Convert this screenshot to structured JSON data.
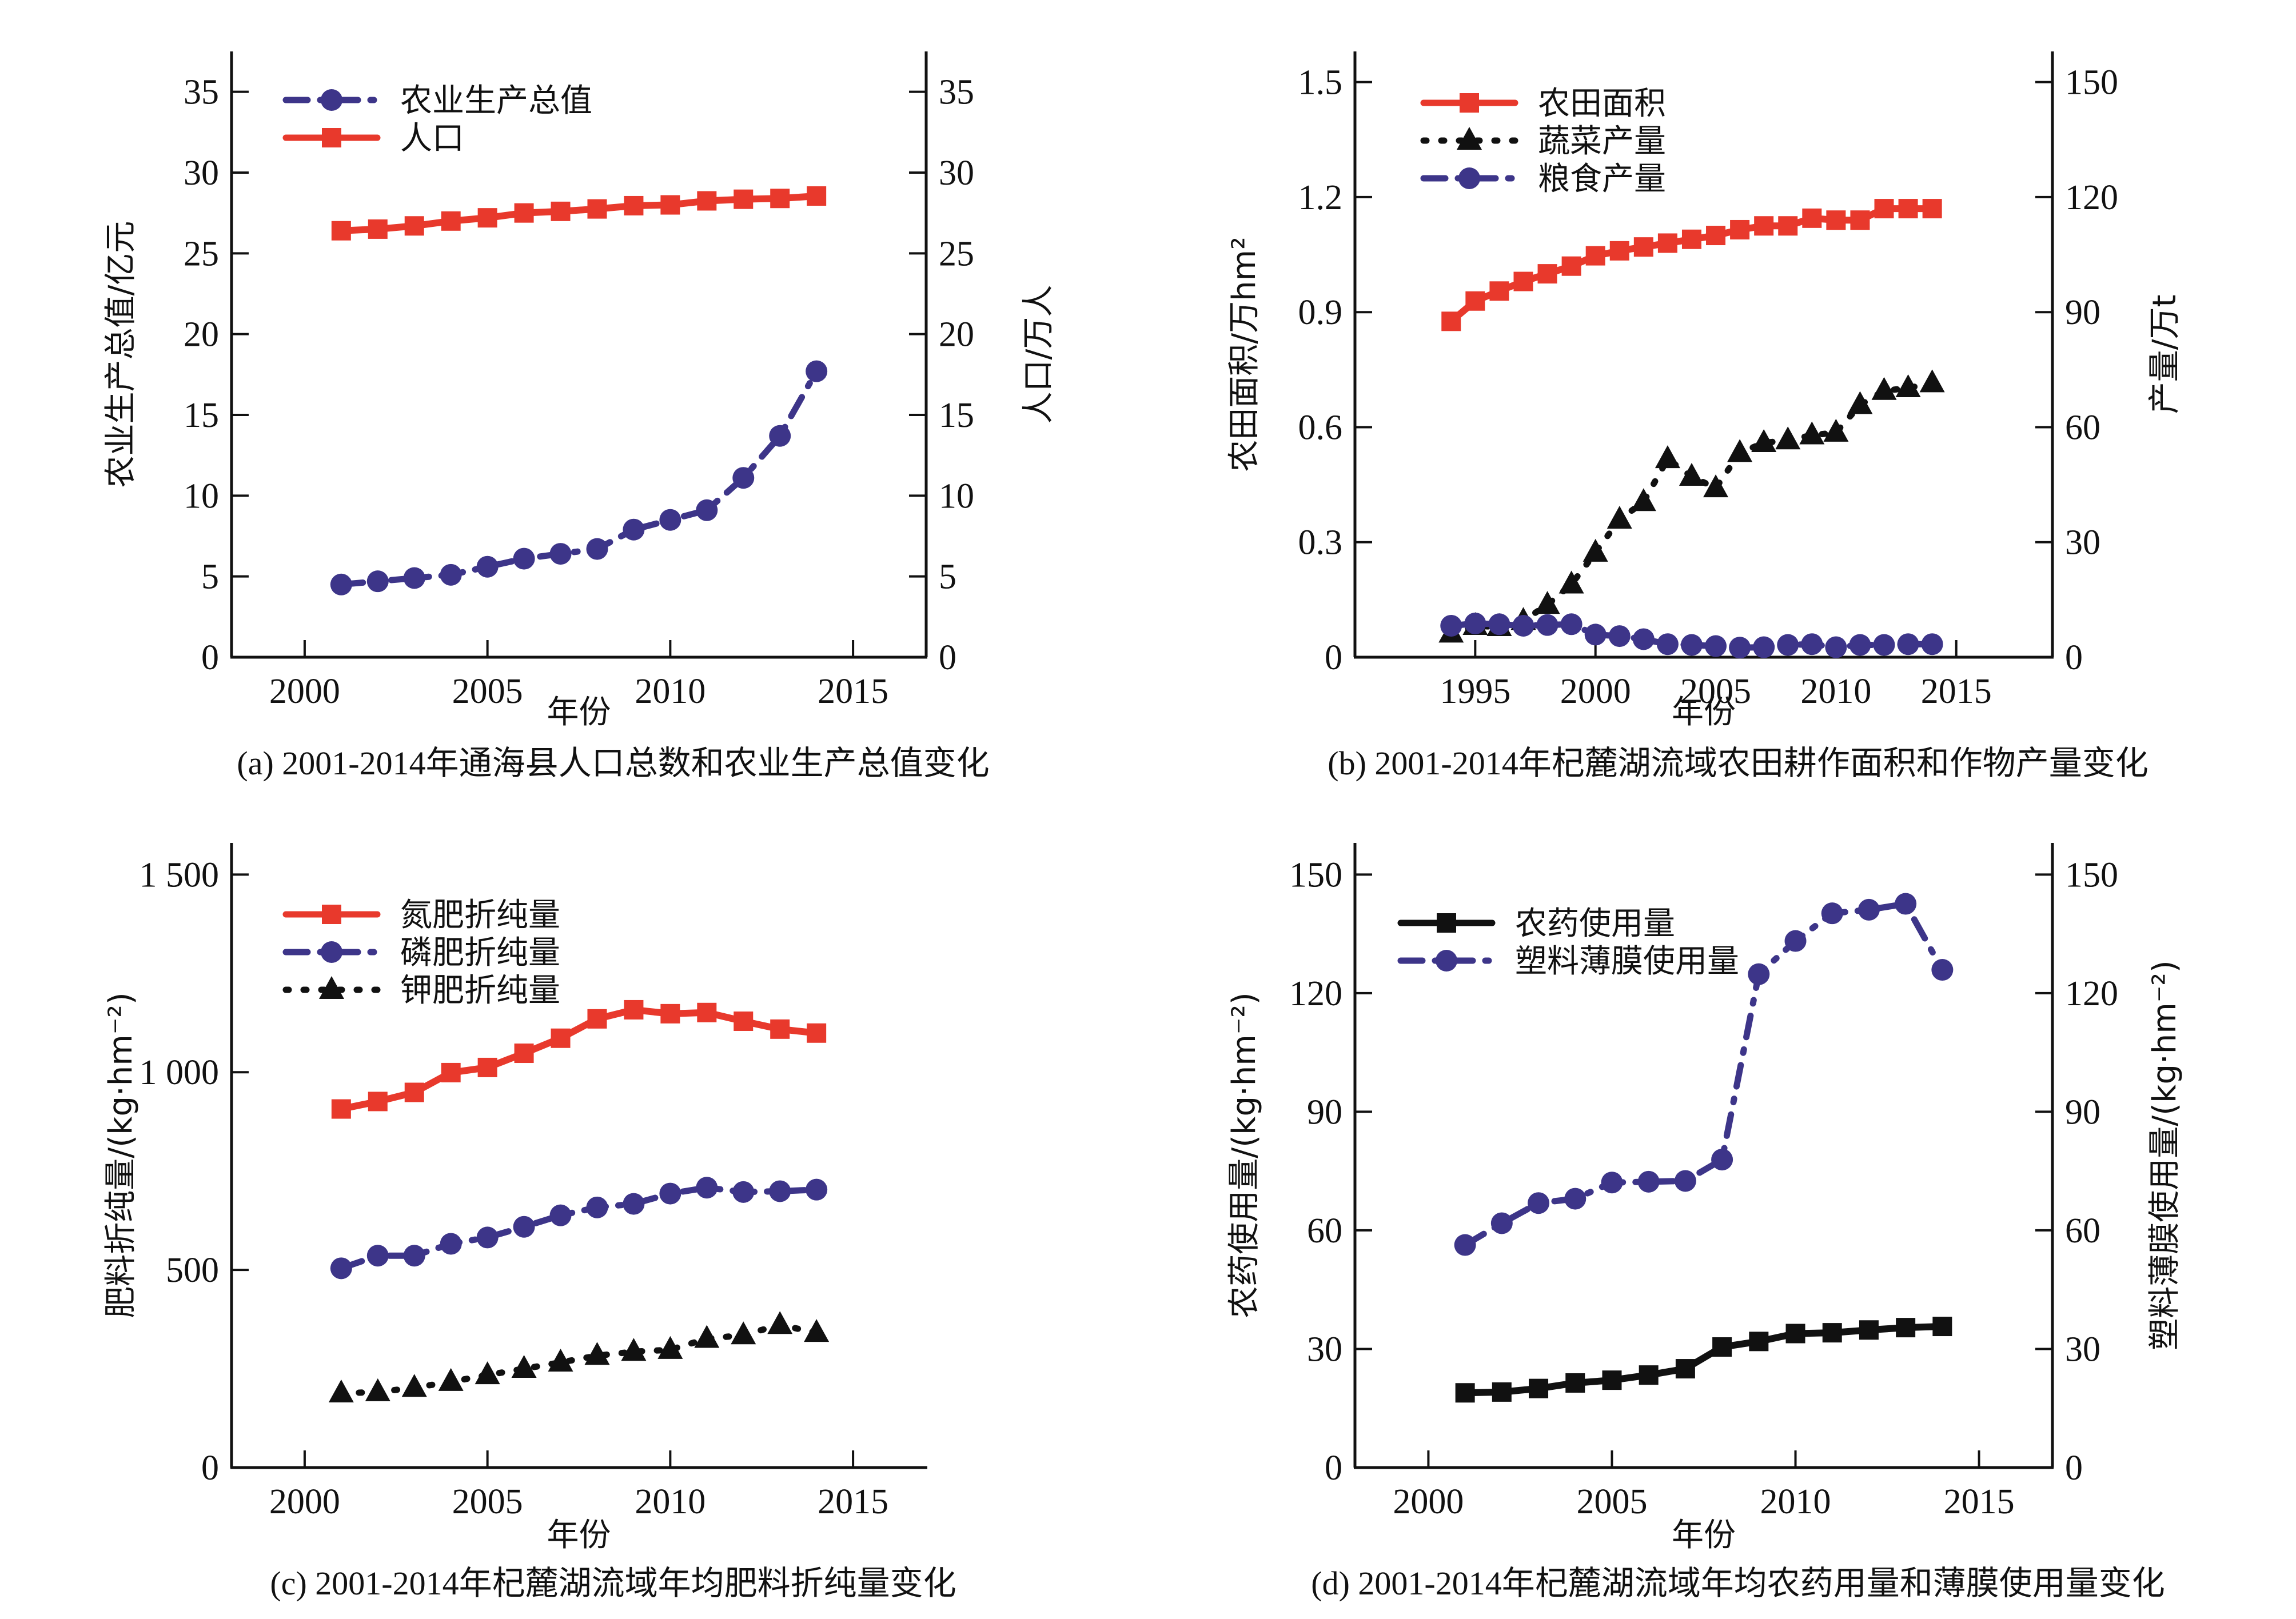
{
  "colors": {
    "red": "#E8392C",
    "blue": "#3D3589",
    "black": "#111111"
  },
  "chart_data": [
    {
      "id": "a",
      "type": "line",
      "caption": "(a) 2001-2014年通海县人口总数和农业生产总值变化",
      "xlabel": "年份",
      "ylabel_left": "农业生产总值/亿元",
      "ylabel_right": "人口/万人",
      "xlim": [
        1998,
        2017
      ],
      "xticks": [
        2000,
        2005,
        2010,
        2015
      ],
      "ylim_left": [
        0,
        37.5
      ],
      "yticks_left": [
        0,
        5,
        10,
        15,
        20,
        25,
        30,
        35
      ],
      "ylim_right": [
        0,
        37.5
      ],
      "yticks_right": [
        0,
        5,
        10,
        15,
        20,
        25,
        30,
        35
      ],
      "legend_position": "top-left",
      "x": [
        2001,
        2002,
        2003,
        2004,
        2005,
        2006,
        2007,
        2008,
        2009,
        2010,
        2011,
        2012,
        2013,
        2014
      ],
      "series": [
        {
          "name": "农业生产总值",
          "axis": "left",
          "style": "dashdot",
          "marker": "circle",
          "color": "blue",
          "values": [
            4.5,
            4.7,
            4.9,
            5.1,
            5.6,
            6.1,
            6.4,
            6.7,
            7.9,
            8.5,
            9.1,
            11.1,
            13.7,
            17.7
          ]
        },
        {
          "name": "人口",
          "axis": "right",
          "style": "solid",
          "marker": "square",
          "color": "red",
          "values": [
            26.4,
            26.5,
            26.7,
            27.0,
            27.2,
            27.5,
            27.6,
            27.75,
            27.95,
            28.0,
            28.25,
            28.35,
            28.4,
            28.55
          ]
        }
      ]
    },
    {
      "id": "b",
      "type": "line",
      "caption": "(b) 2001-2014年杞麓湖流域农田耕作面积和作物产量变化",
      "xlabel": "年份",
      "ylabel_left": "农田面积/万hm²",
      "ylabel_right": "产量/万t",
      "xlim": [
        1990,
        2019
      ],
      "xticks": [
        1995,
        2000,
        2005,
        2010,
        2015
      ],
      "ylim_left": [
        0,
        1.58
      ],
      "yticks_left": [
        0,
        0.3,
        0.6,
        0.9,
        1.2,
        1.5
      ],
      "ytick_labels_left": [
        "0",
        "0.3",
        "0.6",
        "0.9",
        "1.2",
        "1.5"
      ],
      "ylim_right": [
        0,
        158
      ],
      "yticks_right": [
        0,
        30,
        60,
        90,
        120,
        150
      ],
      "legend_position": "top-left",
      "x": [
        1994,
        1995,
        1996,
        1997,
        1998,
        1999,
        2000,
        2001,
        2002,
        2003,
        2004,
        2005,
        2006,
        2007,
        2008,
        2009,
        2010,
        2011,
        2012,
        2013,
        2014
      ],
      "series": [
        {
          "name": "农田面积",
          "axis": "left",
          "style": "solid",
          "marker": "square",
          "color": "red",
          "values": [
            0.876,
            0.929,
            0.955,
            0.98,
            1.0,
            1.02,
            1.047,
            1.06,
            1.07,
            1.08,
            1.09,
            1.1,
            1.115,
            1.125,
            1.125,
            1.145,
            1.14,
            1.14,
            1.17,
            1.17,
            1.17
          ]
        },
        {
          "name": "蔬菜产量",
          "axis": "right",
          "style": "dotted",
          "marker": "triangle",
          "color": "black",
          "values": [
            6.2,
            8.2,
            7.9,
            9.5,
            13.7,
            19.0,
            27.3,
            35.9,
            40.5,
            51.7,
            47.1,
            44.1,
            53.3,
            55.9,
            56.6,
            57.9,
            58.6,
            65.8,
            69.5,
            70.2,
            71.5
          ]
        },
        {
          "name": "粮食产量",
          "axis": "right",
          "style": "dashdot",
          "marker": "circle",
          "color": "blue",
          "values": [
            8.2,
            8.8,
            8.6,
            8.2,
            8.4,
            8.6,
            5.9,
            5.5,
            4.7,
            3.4,
            3.2,
            2.9,
            2.5,
            2.6,
            3.2,
            3.4,
            2.6,
            3.2,
            3.2,
            3.4,
            3.4
          ]
        }
      ]
    },
    {
      "id": "c",
      "type": "line",
      "caption": "(c) 2001-2014年杞麓湖流域年均肥料折纯量变化",
      "xlabel": "年份",
      "ylabel_left": "肥料折纯量/(kg·hm⁻²)",
      "xlim": [
        1998,
        2017
      ],
      "xticks": [
        2000,
        2005,
        2010,
        2015
      ],
      "ylim_left": [
        0,
        1580
      ],
      "yticks_left": [
        0,
        500,
        1000,
        1500
      ],
      "ytick_labels_left": [
        "0",
        "500",
        "1 000",
        "1 500"
      ],
      "legend_position": "top-left",
      "x": [
        2001,
        2002,
        2003,
        2004,
        2005,
        2006,
        2007,
        2008,
        2009,
        2010,
        2011,
        2012,
        2013,
        2014
      ],
      "series": [
        {
          "name": "氮肥折纯量",
          "axis": "left",
          "style": "solid",
          "marker": "square",
          "color": "red",
          "values": [
            907,
            926,
            949,
            999,
            1012,
            1048,
            1086,
            1135,
            1158,
            1148,
            1151,
            1129,
            1109,
            1099
          ]
        },
        {
          "name": "磷肥折纯量",
          "axis": "left",
          "style": "dashdot",
          "marker": "circle",
          "color": "blue",
          "values": [
            504,
            536,
            536,
            566,
            582,
            609,
            638,
            658,
            667,
            693,
            708,
            697,
            699,
            703
          ]
        },
        {
          "name": "钾肥折纯量",
          "axis": "left",
          "style": "dotted",
          "marker": "triangle",
          "color": "black",
          "values": [
            188,
            191,
            202,
            217,
            234,
            250,
            266,
            283,
            293,
            298,
            326,
            335,
            361,
            341
          ]
        }
      ]
    },
    {
      "id": "d",
      "type": "line",
      "caption": "(d) 2001-2014年杞麓湖流域年均农药用量和薄膜使用量变化",
      "xlabel": "年份",
      "ylabel_left": "农药使用量/(kg·hm⁻²)",
      "ylabel_right": "塑料薄膜使用量/(kg·hm⁻²)",
      "xlim": [
        1998,
        2017
      ],
      "xticks": [
        2000,
        2005,
        2010,
        2015
      ],
      "ylim_left": [
        0,
        158
      ],
      "yticks_left": [
        0,
        30,
        60,
        90,
        120,
        150
      ],
      "ylim_right": [
        0,
        158
      ],
      "yticks_right": [
        0,
        30,
        60,
        90,
        120,
        150
      ],
      "legend_position": "top-left",
      "x": [
        2001,
        2002,
        2003,
        2004,
        2005,
        2006,
        2007,
        2008,
        2009,
        2010,
        2011,
        2012,
        2013,
        2014
      ],
      "series": [
        {
          "name": "农药使用量",
          "axis": "left",
          "style": "solid",
          "marker": "square",
          "color": "black",
          "values": [
            18.9,
            19.1,
            20.0,
            21.4,
            22.1,
            23.4,
            25.0,
            30.5,
            31.9,
            33.9,
            34.1,
            34.8,
            35.4,
            35.7
          ]
        },
        {
          "name": "塑料薄膜使用量",
          "axis": "right",
          "style": "dashdot",
          "marker": "circle",
          "color": "blue",
          "values": [
            56.3,
            61.8,
            66.9,
            68.0,
            72.1,
            72.3,
            72.5,
            77.9,
            124.8,
            133.2,
            140.2,
            141.1,
            142.6,
            125.9
          ]
        }
      ]
    }
  ]
}
